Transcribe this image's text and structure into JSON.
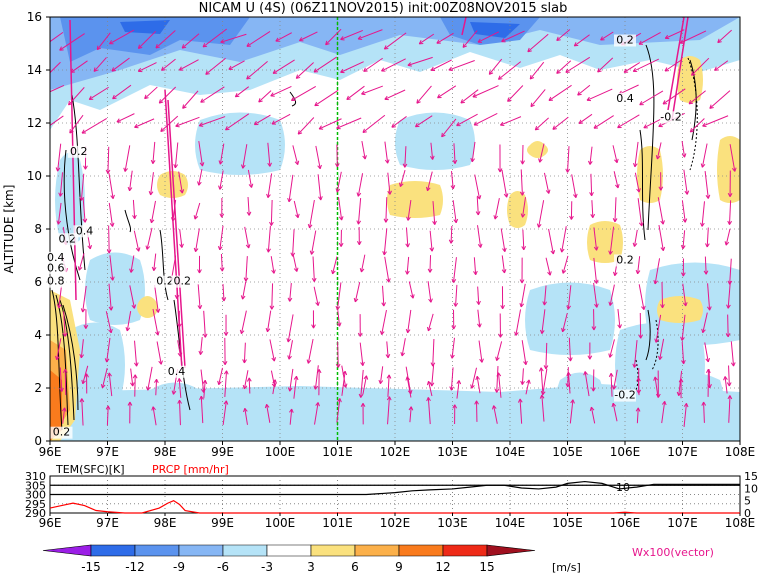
{
  "chart_data": [
    {
      "type": "heatmap",
      "title": "NICAM U (4S) (06Z11NOV2015) init:00Z08NOV2015 slab",
      "ylabel": "ALTITUDE [km]",
      "xlabel": "",
      "x_ticks": [
        "96E",
        "97E",
        "98E",
        "99E",
        "100E",
        "101E",
        "102E",
        "103E",
        "104E",
        "105E",
        "106E",
        "107E",
        "108E"
      ],
      "y_ticks": [
        "0",
        "2",
        "4",
        "6",
        "8",
        "10",
        "12",
        "14",
        "16"
      ],
      "xlim": [
        96,
        108
      ],
      "ylim": [
        0,
        16
      ],
      "grid": "dotted",
      "marker_longitude": 101,
      "contour_labels": [
        {
          "text": "0.2",
          "lon": 96.5,
          "alt": 10.8
        },
        {
          "text": "0.2",
          "lon": 96.3,
          "alt": 7.5
        },
        {
          "text": "0.4",
          "lon": 96.6,
          "alt": 7.8
        },
        {
          "text": "0.4",
          "lon": 96.1,
          "alt": 6.8
        },
        {
          "text": "0.6",
          "lon": 96.1,
          "alt": 6.4
        },
        {
          "text": "0.8",
          "lon": 96.1,
          "alt": 5.9
        },
        {
          "text": "0.2",
          "lon": 98.0,
          "alt": 5.9
        },
        {
          "text": "0.2",
          "lon": 98.3,
          "alt": 5.9
        },
        {
          "text": "0.4",
          "lon": 98.2,
          "alt": 2.5
        },
        {
          "text": "0.2",
          "lon": 106.0,
          "alt": 15.0
        },
        {
          "text": "0.4",
          "lon": 106.0,
          "alt": 12.8
        },
        {
          "text": "-0.2",
          "lon": 106.8,
          "alt": 12.1
        },
        {
          "text": "0.2",
          "lon": 106.0,
          "alt": 6.7
        },
        {
          "text": "-0.2",
          "lon": 106.0,
          "alt": 1.6
        },
        {
          "text": "0.2",
          "lon": 96.2,
          "alt": 0.2
        }
      ]
    },
    {
      "type": "line",
      "series": [
        {
          "name": "TEM(SFC)[K]",
          "color": "#000000",
          "x": [
            96,
            96.5,
            97,
            97.5,
            98,
            98.5,
            99,
            99.5,
            100,
            100.5,
            101,
            101.5,
            102,
            102.3,
            102.6,
            103,
            103.3,
            103.6,
            103.9,
            104.2,
            104.5,
            104.8,
            105,
            105.3,
            105.6,
            105.9,
            106.2,
            106.5,
            107,
            107.5,
            108
          ],
          "y": [
            300,
            300,
            300,
            300,
            300,
            300,
            300,
            300,
            300,
            300,
            300,
            300,
            301,
            302,
            302.5,
            303,
            304,
            305,
            305,
            303.5,
            303,
            304,
            306,
            307,
            306,
            303,
            304,
            305.5,
            305.5,
            305.5,
            305.5
          ]
        },
        {
          "name": "PRCP [mm/hr]",
          "color": "#ff0000",
          "x": [
            96,
            96.2,
            96.4,
            96.6,
            96.8,
            97,
            97.3,
            97.6,
            97.9,
            98.05,
            98.15,
            98.25,
            98.35,
            98.6,
            99,
            100,
            101,
            102,
            103,
            104,
            105,
            105.8,
            106,
            106.2,
            106.5,
            107,
            108
          ],
          "y": [
            2,
            3,
            4,
            3,
            1,
            0.5,
            0,
            0,
            2,
            4,
            5,
            3.5,
            1,
            0,
            0,
            0,
            0,
            0,
            0,
            0,
            0,
            0,
            0.3,
            0,
            0,
            0,
            0
          ]
        }
      ],
      "left_ticks": [
        "310",
        "305",
        "300",
        "295",
        "290"
      ],
      "right_ticks": [
        "15",
        "10",
        "5",
        "0"
      ],
      "annotation": "10",
      "ylim_left": [
        290,
        310
      ],
      "ylim_right": [
        0,
        15
      ],
      "x_ticks": [
        "96E",
        "97E",
        "98E",
        "99E",
        "100E",
        "101E",
        "102E",
        "103E",
        "104E",
        "105E",
        "106E",
        "107E",
        "108E"
      ]
    }
  ],
  "legend": {
    "ticks": [
      "-15",
      "-12",
      "-9",
      "-6",
      "-3",
      "3",
      "6",
      "9",
      "12",
      "15"
    ],
    "unit": "[m/s]",
    "vector_label": "Wx100(vector)",
    "colors": [
      "#9b1ee6",
      "#2e6ce8",
      "#5b93ee",
      "#86b6f4",
      "#b5e3f7",
      "#ffffff",
      "#fae17e",
      "#fbb04a",
      "#f97b1d",
      "#ee2a17",
      "#a0101f"
    ]
  },
  "colors": {
    "vector": "#e6168c",
    "wind_line": "#e6168c",
    "marker_line": "#00bb00"
  }
}
